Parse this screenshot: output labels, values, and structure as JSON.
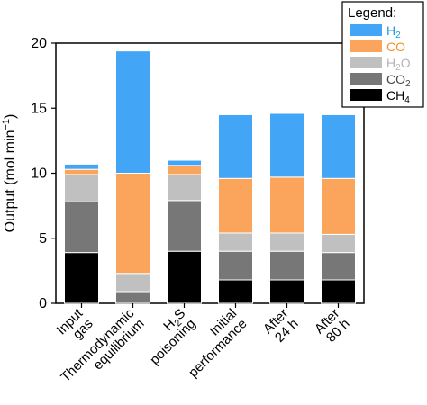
{
  "chart_data": {
    "type": "bar",
    "stacked": true,
    "ylabel": "Output (mol min⁻¹)",
    "ylabel_parts": {
      "main": "Output (mol min",
      "sup": "−1",
      "close": ")"
    },
    "ylim": [
      0,
      20
    ],
    "yticks": [
      0,
      5,
      10,
      15,
      20
    ],
    "categories": [
      {
        "lines": [
          "Input",
          "gas"
        ]
      },
      {
        "lines": [
          "Thermodynamic",
          "equilibrium"
        ]
      },
      {
        "lines": [
          "H2S",
          "poisoning"
        ],
        "first_line": {
          "base": "H",
          "sub": "2",
          "rest": "S"
        }
      },
      {
        "lines": [
          "Initial",
          "performance"
        ]
      },
      {
        "lines": [
          "After",
          "24 h"
        ]
      },
      {
        "lines": [
          "After",
          "80 h"
        ]
      }
    ],
    "series": [
      {
        "name": "CH4",
        "base": "CH",
        "sub": "4",
        "color": "#000000",
        "values": [
          3.9,
          0.0,
          4.0,
          1.8,
          1.8,
          1.8
        ]
      },
      {
        "name": "CO2",
        "base": "CO",
        "sub": "2",
        "color": "#777777",
        "values": [
          3.9,
          0.9,
          3.9,
          2.2,
          2.2,
          2.1
        ]
      },
      {
        "name": "H2O",
        "base": "H",
        "sub": "2",
        "rest": "O",
        "color": "#c0c0c0",
        "values": [
          2.1,
          1.4,
          2.0,
          1.4,
          1.4,
          1.4
        ]
      },
      {
        "name": "CO",
        "base": "CO",
        "color": "#fba55c",
        "values": [
          0.4,
          7.7,
          0.7,
          4.2,
          4.3,
          4.3
        ]
      },
      {
        "name": "H2",
        "base": "H",
        "sub": "2",
        "color": "#42a5f5",
        "values": [
          0.4,
          9.4,
          0.4,
          4.9,
          4.9,
          4.9
        ]
      }
    ],
    "legend": {
      "title": "Legend:",
      "placement": "top-right",
      "text_colors": {
        "H2": "#1e9be0",
        "CO": "#f0932b",
        "H2O": "#b5b5b5",
        "CO2": "#444444",
        "CH4": "#000000"
      }
    },
    "grid": false
  }
}
